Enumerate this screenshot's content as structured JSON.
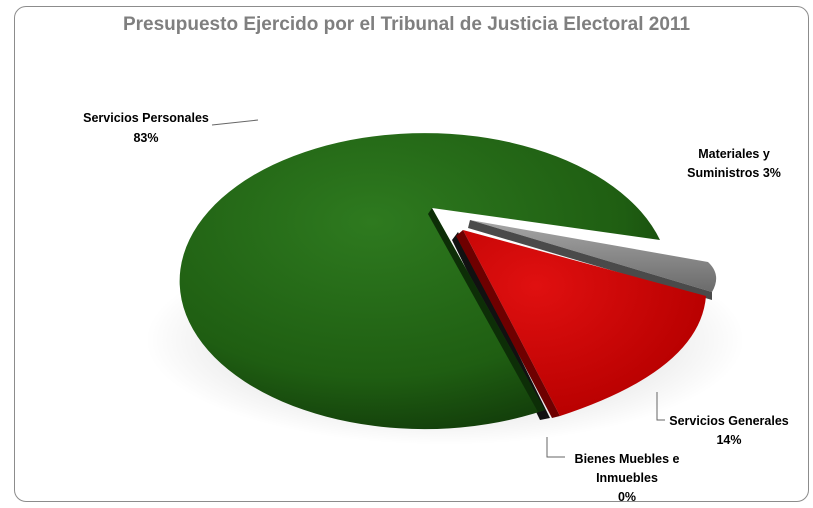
{
  "chart_data": {
    "type": "pie",
    "title": "Presupuesto Ejercido por el Tribunal de Justicia Electoral 2011",
    "slices": [
      {
        "name": "Servicios Personales",
        "percent_label": "83%",
        "value": 83,
        "color": "#1f5e12"
      },
      {
        "name": "Materiales y Suministros",
        "percent_label": "3%",
        "value": 3,
        "color": "#8a8a8a"
      },
      {
        "name": "Servicios Generales",
        "percent_label": "14%",
        "value": 14,
        "color": "#c00000"
      },
      {
        "name": "Bienes Muebles e Inmuebles",
        "percent_label": "0%",
        "value": 0,
        "color": "#1a1a1a"
      }
    ],
    "labels": {
      "personales": {
        "line1": "Servicios Personales",
        "line2": "83%"
      },
      "materiales": {
        "line1": "Materiales y",
        "line2": "Suministros 3%"
      },
      "generales": {
        "line1": "Servicios Generales",
        "line2": "14%"
      },
      "bienes": {
        "line1": "Bienes Muebles e",
        "line2": "Inmuebles",
        "line3": "0%"
      }
    }
  }
}
